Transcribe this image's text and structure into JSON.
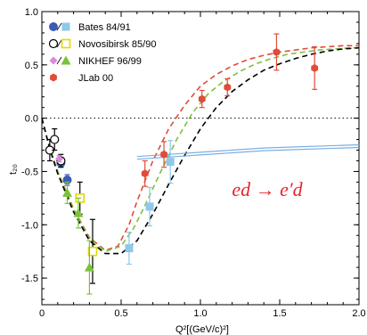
{
  "chart_data": {
    "type": "scatter",
    "title": "",
    "xlabel": "Q²[(GeV/c)²]",
    "ylabel": "t₂₀",
    "xlim": [
      0,
      2.0
    ],
    "ylim": [
      -1.75,
      1.0
    ],
    "x_ticks": [
      0,
      0.5,
      1.0,
      1.5,
      2.0
    ],
    "x_tick_labels": [
      "0",
      "0.5",
      "1.0",
      "1.5",
      "2.0"
    ],
    "y_ticks": [
      1.0,
      0.5,
      0.0,
      -0.5,
      -1.0,
      -1.5
    ],
    "y_tick_labels": [
      "1.0",
      "0.5",
      "0.0",
      "-0.5",
      "-1.0",
      "-1.5"
    ],
    "zero_line": true,
    "grid": false,
    "legend_position": "top-left",
    "annotation": "ed → e′d",
    "legend": [
      {
        "label": "Bates 84/91",
        "markers": [
          "circle-filled",
          "square-filled"
        ],
        "colors": [
          "#3b5bb5",
          "#8fc8e8"
        ]
      },
      {
        "label": "Novosibirsk 85/90",
        "markers": [
          "circle-open",
          "square-open"
        ],
        "colors": [
          "#000000",
          "#e8d800"
        ]
      },
      {
        "label": "NIKHEF 96/99",
        "markers": [
          "diamond-filled",
          "triangle-filled"
        ],
        "colors": [
          "#d88ad8",
          "#7cc23a"
        ]
      },
      {
        "label": "JLab 00",
        "markers": [
          "hexagon-filled"
        ],
        "colors": [
          "#e14b3a"
        ]
      }
    ],
    "series": [
      {
        "marker": "circle-filled",
        "color": "#3b5bb5",
        "points": [
          [
            0.12,
            -0.42,
            0.04
          ],
          [
            0.16,
            -0.58,
            0.05
          ]
        ]
      },
      {
        "marker": "square-filled",
        "color": "#8fc8e8",
        "points": [
          [
            0.55,
            -1.22,
            0.15
          ],
          [
            0.68,
            -0.83,
            0.18
          ],
          [
            0.81,
            -0.41,
            0.2
          ]
        ]
      },
      {
        "marker": "circle-open",
        "color": "#000000",
        "points": [
          [
            0.05,
            -0.3,
            0.1
          ],
          [
            0.08,
            -0.2,
            0.1
          ],
          [
            0.12,
            -0.4,
            0.06
          ]
        ]
      },
      {
        "marker": "square-open",
        "color": "#e8d800",
        "points": [
          [
            0.24,
            -0.75,
            0.15
          ],
          [
            0.32,
            -1.25,
            0.3
          ]
        ]
      },
      {
        "marker": "diamond-filled",
        "color": "#d88ad8",
        "points": [
          [
            0.11,
            -0.38,
            0.03
          ]
        ]
      },
      {
        "marker": "triangle-filled",
        "color": "#7cc23a",
        "points": [
          [
            0.16,
            -0.7,
            0.1
          ],
          [
            0.23,
            -0.89,
            0.14
          ],
          [
            0.3,
            -1.4,
            0.25
          ]
        ]
      },
      {
        "marker": "hexagon-filled",
        "color": "#e14b3a",
        "points": [
          [
            0.65,
            -0.52,
            0.12
          ],
          [
            0.77,
            -0.34,
            0.12
          ],
          [
            1.01,
            0.18,
            0.08
          ],
          [
            1.17,
            0.29,
            0.08
          ],
          [
            1.48,
            0.62,
            0.17
          ],
          [
            1.72,
            0.47,
            0.2
          ]
        ]
      }
    ],
    "curves": [
      {
        "style": "dashed",
        "color": "#e14b3a",
        "points": [
          [
            0,
            0
          ],
          [
            0.05,
            -0.28
          ],
          [
            0.1,
            -0.5
          ],
          [
            0.2,
            -0.85
          ],
          [
            0.3,
            -1.12
          ],
          [
            0.4,
            -1.24
          ],
          [
            0.48,
            -1.2
          ],
          [
            0.55,
            -1.0
          ],
          [
            0.6,
            -0.78
          ],
          [
            0.7,
            -0.4
          ],
          [
            0.8,
            -0.1
          ],
          [
            0.9,
            0.12
          ],
          [
            1.0,
            0.3
          ],
          [
            1.1,
            0.41
          ],
          [
            1.2,
            0.49
          ],
          [
            1.3,
            0.55
          ],
          [
            1.4,
            0.59
          ],
          [
            1.5,
            0.62
          ],
          [
            1.6,
            0.64
          ],
          [
            1.7,
            0.66
          ],
          [
            1.8,
            0.67
          ],
          [
            1.9,
            0.68
          ],
          [
            2.0,
            0.68
          ]
        ]
      },
      {
        "style": "dashed",
        "color": "#7cc23a",
        "points": [
          [
            0,
            0
          ],
          [
            0.05,
            -0.28
          ],
          [
            0.1,
            -0.5
          ],
          [
            0.2,
            -0.86
          ],
          [
            0.3,
            -1.13
          ],
          [
            0.4,
            -1.25
          ],
          [
            0.5,
            -1.2
          ],
          [
            0.58,
            -1.03
          ],
          [
            0.65,
            -0.82
          ],
          [
            0.75,
            -0.5
          ],
          [
            0.85,
            -0.2
          ],
          [
            0.95,
            0.05
          ],
          [
            1.05,
            0.23
          ],
          [
            1.15,
            0.35
          ],
          [
            1.25,
            0.44
          ],
          [
            1.35,
            0.51
          ],
          [
            1.45,
            0.56
          ],
          [
            1.55,
            0.6
          ],
          [
            1.65,
            0.62
          ],
          [
            1.75,
            0.64
          ],
          [
            1.85,
            0.65
          ],
          [
            1.95,
            0.66
          ],
          [
            2.0,
            0.66
          ]
        ]
      },
      {
        "style": "dashed",
        "color": "#000000",
        "points": [
          [
            0,
            0
          ],
          [
            0.05,
            -0.29
          ],
          [
            0.1,
            -0.52
          ],
          [
            0.2,
            -0.88
          ],
          [
            0.3,
            -1.15
          ],
          [
            0.4,
            -1.27
          ],
          [
            0.5,
            -1.27
          ],
          [
            0.6,
            -1.15
          ],
          [
            0.7,
            -0.9
          ],
          [
            0.8,
            -0.62
          ],
          [
            0.9,
            -0.35
          ],
          [
            1.0,
            -0.1
          ],
          [
            1.1,
            0.1
          ],
          [
            1.2,
            0.25
          ],
          [
            1.3,
            0.36
          ],
          [
            1.4,
            0.45
          ],
          [
            1.5,
            0.51
          ],
          [
            1.6,
            0.56
          ],
          [
            1.7,
            0.6
          ],
          [
            1.8,
            0.63
          ],
          [
            1.9,
            0.65
          ],
          [
            2.0,
            0.66
          ]
        ]
      },
      {
        "style": "solid-double",
        "color": "#7ab0e0",
        "points": [
          [
            0.6,
            -0.36
          ],
          [
            0.8,
            -0.34
          ],
          [
            1.0,
            -0.32
          ],
          [
            1.2,
            -0.3
          ],
          [
            1.4,
            -0.28
          ],
          [
            1.6,
            -0.27
          ],
          [
            1.8,
            -0.26
          ],
          [
            2.0,
            -0.25
          ]
        ]
      }
    ]
  }
}
